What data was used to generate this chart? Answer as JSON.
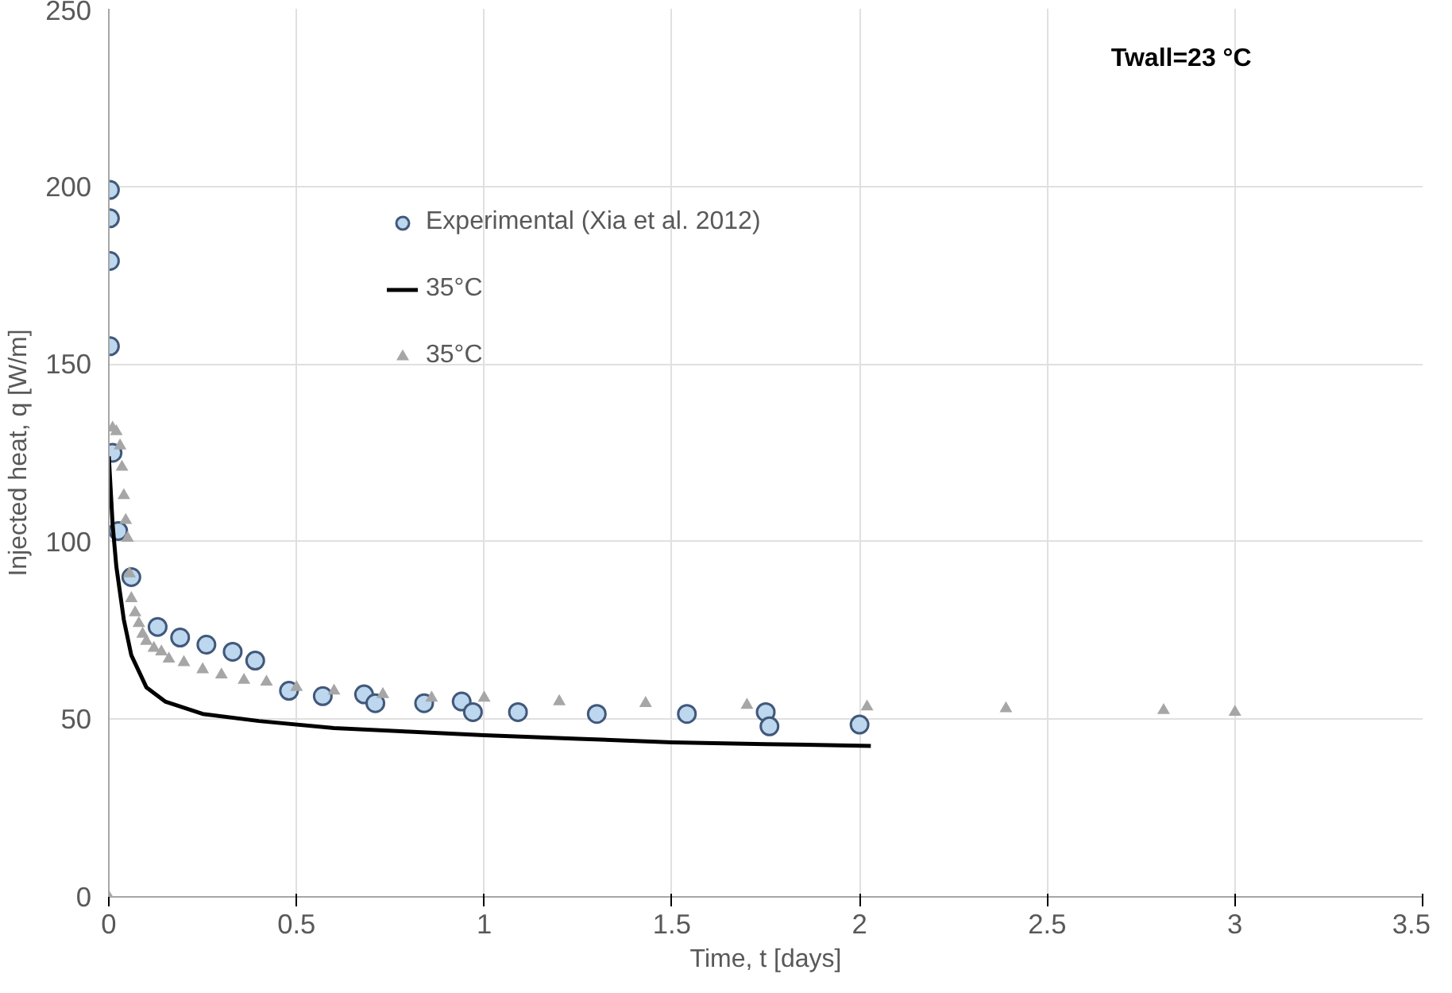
{
  "chart_data": {
    "type": "scatter",
    "xlabel": "Time, t [days]",
    "ylabel": "Injected heat, q [W/m]",
    "annotations": [
      "Twall=23 °C"
    ],
    "xlim": [
      0,
      3.5
    ],
    "xticks": [
      0,
      0.5,
      1,
      1.5,
      2,
      2.5,
      3,
      3.5
    ],
    "ylim": [
      0,
      250
    ],
    "yticks": [
      0,
      50,
      100,
      150,
      200,
      250
    ],
    "grid": true,
    "legend": "top",
    "series": [
      {
        "name": "Experimental (Xia et al. 2012)",
        "marker": "circle",
        "color": "#bdd7ee",
        "x": [
          0.003,
          0.003,
          0.003,
          0.003,
          0.01,
          0.025,
          0.06,
          0.13,
          0.19,
          0.26,
          0.33,
          0.39,
          0.48,
          0.57,
          0.68,
          0.71,
          0.84,
          0.94,
          0.97,
          1.09,
          1.3,
          1.54,
          1.75,
          1.76,
          2.0
        ],
        "values": [
          199,
          191,
          179,
          155,
          125,
          103,
          90,
          76,
          73,
          71,
          69,
          66.5,
          58,
          56.5,
          57,
          54.5,
          54.5,
          55,
          52,
          52,
          51.5,
          51.5,
          52,
          48,
          48.5
        ]
      },
      {
        "name": "35°C",
        "type": "line",
        "marker": "none",
        "line_style": "solid",
        "color": "#000000",
        "x": [
          0,
          0.01,
          0.02,
          0.04,
          0.06,
          0.1,
          0.15,
          0.25,
          0.4,
          0.6,
          0.8,
          1.0,
          1.25,
          1.5,
          1.75,
          2.03
        ],
        "values": [
          124,
          105,
          93,
          78,
          68,
          59,
          55,
          51.5,
          49.5,
          47.5,
          46.5,
          45.5,
          44.5,
          43.5,
          43,
          42.5
        ]
      },
      {
        "name": "35°C",
        "marker": "triangle",
        "color": "#a6a6a6",
        "x": [
          0,
          0.01,
          0.02,
          0.03,
          0.035,
          0.04,
          0.045,
          0.05,
          0.055,
          0.06,
          0.07,
          0.08,
          0.09,
          0.1,
          0.12,
          0.14,
          0.16,
          0.2,
          0.25,
          0.3,
          0.36,
          0.42,
          0.5,
          0.6,
          0.73,
          0.86,
          1.0,
          1.2,
          1.43,
          1.7,
          2.02,
          2.39,
          2.81,
          3.0
        ],
        "values": [
          0,
          132,
          131,
          127,
          121,
          113,
          106,
          101,
          91,
          84,
          80,
          77,
          74,
          72,
          70,
          69,
          67,
          66,
          64,
          62.5,
          61,
          60.5,
          59,
          58,
          57,
          56,
          56,
          55,
          54.5,
          54,
          53.5,
          53,
          52.5,
          52
        ]
      }
    ]
  }
}
